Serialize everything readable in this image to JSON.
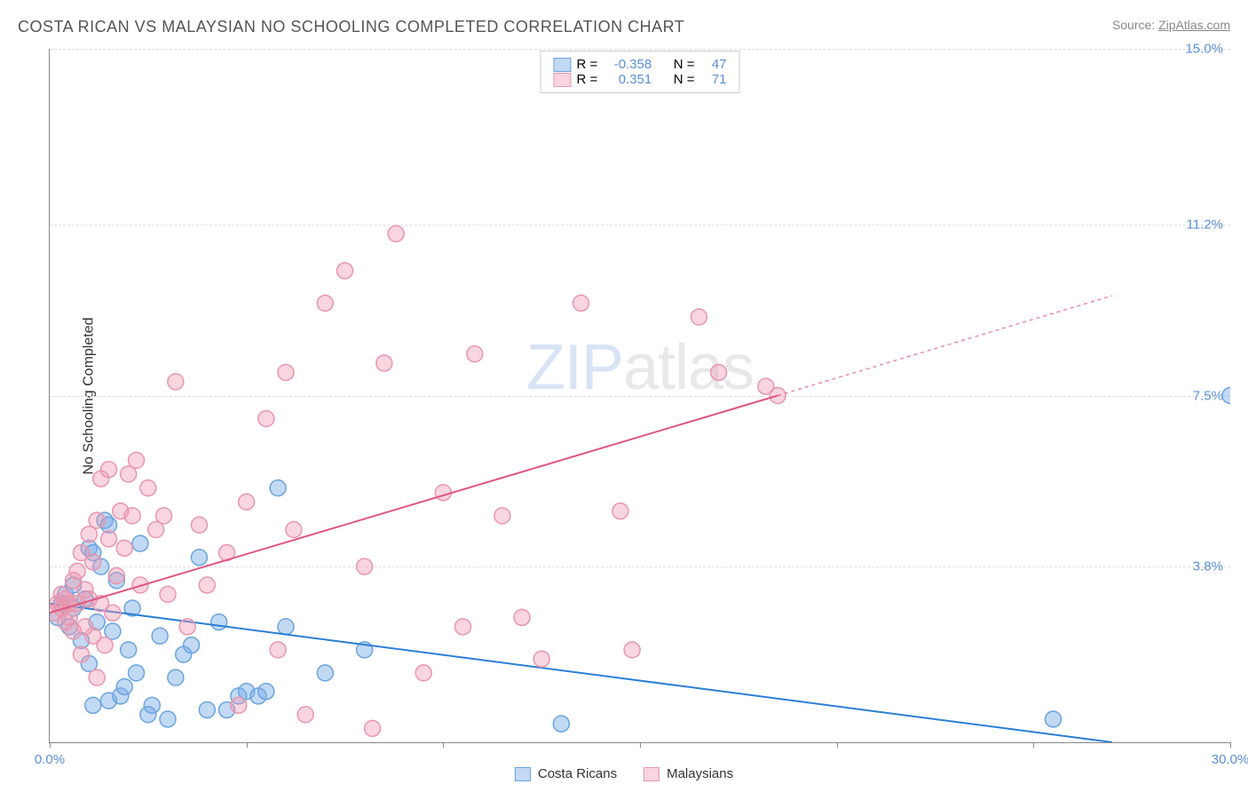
{
  "title": "COSTA RICAN VS MALAYSIAN NO SCHOOLING COMPLETED CORRELATION CHART",
  "source_label": "Source:",
  "source_name": "ZipAtlas.com",
  "y_axis_label": "No Schooling Completed",
  "watermark_zip": "ZIP",
  "watermark_atlas": "atlas",
  "chart": {
    "type": "scatter-with-regression",
    "xlim": [
      0,
      30
    ],
    "ylim": [
      0,
      15
    ],
    "x_ticks": [
      0,
      5,
      10,
      15,
      20,
      25,
      30
    ],
    "x_tick_labels_shown": {
      "0": "0.0%",
      "30": "30.0%"
    },
    "y_ticks": [
      0,
      3.8,
      7.5,
      11.2,
      15.0
    ],
    "y_tick_labels": [
      "",
      "3.8%",
      "7.5%",
      "11.2%",
      "15.0%"
    ],
    "background_color": "#ffffff",
    "grid_color": "#dddddd",
    "axis_color": "#888888",
    "tick_label_color": "#5a8fd8",
    "tick_label_fontsize": 15
  },
  "series": [
    {
      "name": "Costa Ricans",
      "color_fill": "rgba(120,170,230,0.45)",
      "color_stroke": "#6aa4e0",
      "line_color": "#2b7fd6",
      "marker_radius": 9,
      "r_value": "-0.358",
      "n_value": "47",
      "regression": {
        "x1": 0,
        "y1": 3.0,
        "x2": 27,
        "y2": 0.0,
        "extrapolate_to_x": 27
      },
      "points": [
        [
          0.2,
          2.7
        ],
        [
          0.3,
          3.0
        ],
        [
          0.4,
          3.2
        ],
        [
          0.5,
          2.5
        ],
        [
          0.6,
          2.9
        ],
        [
          0.6,
          3.4
        ],
        [
          0.8,
          2.2
        ],
        [
          0.9,
          3.1
        ],
        [
          1.0,
          1.7
        ],
        [
          1.0,
          4.2
        ],
        [
          1.1,
          4.1
        ],
        [
          1.1,
          0.8
        ],
        [
          1.2,
          2.6
        ],
        [
          1.3,
          3.8
        ],
        [
          1.4,
          4.8
        ],
        [
          1.5,
          4.7
        ],
        [
          1.5,
          0.9
        ],
        [
          1.6,
          2.4
        ],
        [
          1.7,
          3.5
        ],
        [
          1.8,
          1.0
        ],
        [
          1.9,
          1.2
        ],
        [
          2.0,
          2.0
        ],
        [
          2.1,
          2.9
        ],
        [
          2.2,
          1.5
        ],
        [
          2.3,
          4.3
        ],
        [
          2.5,
          0.6
        ],
        [
          2.6,
          0.8
        ],
        [
          2.8,
          2.3
        ],
        [
          3.0,
          0.5
        ],
        [
          3.2,
          1.4
        ],
        [
          3.4,
          1.9
        ],
        [
          3.6,
          2.1
        ],
        [
          3.8,
          4.0
        ],
        [
          4.0,
          0.7
        ],
        [
          4.3,
          2.6
        ],
        [
          4.5,
          0.7
        ],
        [
          4.8,
          1.0
        ],
        [
          5.0,
          1.1
        ],
        [
          5.3,
          1.0
        ],
        [
          5.5,
          1.1
        ],
        [
          5.8,
          5.5
        ],
        [
          6.0,
          2.5
        ],
        [
          7.0,
          1.5
        ],
        [
          8.0,
          2.0
        ],
        [
          13.0,
          0.4
        ],
        [
          25.5,
          0.5
        ],
        [
          30.0,
          7.5
        ]
      ]
    },
    {
      "name": "Malaysians",
      "color_fill": "rgba(240,150,175,0.40)",
      "color_stroke": "#e996ae",
      "line_color": "#e0577f",
      "marker_radius": 9,
      "r_value": "0.351",
      "n_value": "71",
      "regression": {
        "x1": 0,
        "y1": 2.8,
        "x2": 18.5,
        "y2": 7.5,
        "extrapolate_to_x": 27
      },
      "points": [
        [
          0.1,
          2.8
        ],
        [
          0.2,
          3.0
        ],
        [
          0.3,
          2.9
        ],
        [
          0.3,
          3.2
        ],
        [
          0.4,
          2.6
        ],
        [
          0.4,
          3.1
        ],
        [
          0.5,
          3.0
        ],
        [
          0.5,
          2.7
        ],
        [
          0.6,
          3.5
        ],
        [
          0.6,
          2.4
        ],
        [
          0.7,
          3.7
        ],
        [
          0.7,
          3.0
        ],
        [
          0.8,
          4.1
        ],
        [
          0.8,
          1.9
        ],
        [
          0.9,
          3.3
        ],
        [
          0.9,
          2.5
        ],
        [
          1.0,
          4.5
        ],
        [
          1.0,
          3.1
        ],
        [
          1.1,
          3.9
        ],
        [
          1.1,
          2.3
        ],
        [
          1.2,
          4.8
        ],
        [
          1.2,
          1.4
        ],
        [
          1.3,
          3.0
        ],
        [
          1.3,
          5.7
        ],
        [
          1.4,
          2.1
        ],
        [
          1.5,
          4.4
        ],
        [
          1.5,
          5.9
        ],
        [
          1.6,
          2.8
        ],
        [
          1.7,
          3.6
        ],
        [
          1.8,
          5.0
        ],
        [
          1.9,
          4.2
        ],
        [
          2.0,
          5.8
        ],
        [
          2.1,
          4.9
        ],
        [
          2.2,
          6.1
        ],
        [
          2.3,
          3.4
        ],
        [
          2.5,
          5.5
        ],
        [
          2.7,
          4.6
        ],
        [
          2.9,
          4.9
        ],
        [
          3.0,
          3.2
        ],
        [
          3.2,
          7.8
        ],
        [
          3.5,
          2.5
        ],
        [
          3.8,
          4.7
        ],
        [
          4.0,
          3.4
        ],
        [
          4.5,
          4.1
        ],
        [
          4.8,
          0.8
        ],
        [
          5.0,
          5.2
        ],
        [
          5.5,
          7.0
        ],
        [
          5.8,
          2.0
        ],
        [
          6.0,
          8.0
        ],
        [
          6.2,
          4.6
        ],
        [
          6.5,
          0.6
        ],
        [
          7.0,
          9.5
        ],
        [
          7.5,
          10.2
        ],
        [
          8.0,
          3.8
        ],
        [
          8.2,
          0.3
        ],
        [
          8.5,
          8.2
        ],
        [
          8.8,
          11.0
        ],
        [
          9.5,
          1.5
        ],
        [
          10.0,
          5.4
        ],
        [
          10.5,
          2.5
        ],
        [
          10.8,
          8.4
        ],
        [
          11.5,
          4.9
        ],
        [
          12.0,
          2.7
        ],
        [
          12.5,
          1.8
        ],
        [
          13.5,
          9.5
        ],
        [
          14.5,
          5.0
        ],
        [
          14.8,
          2.0
        ],
        [
          16.5,
          9.2
        ],
        [
          17.0,
          8.0
        ],
        [
          18.2,
          7.7
        ],
        [
          18.5,
          7.5
        ]
      ]
    }
  ],
  "legend_labels": {
    "r_prefix": "R =",
    "n_prefix": "N ="
  },
  "bottom_legend": [
    "Costa Ricans",
    "Malaysians"
  ]
}
